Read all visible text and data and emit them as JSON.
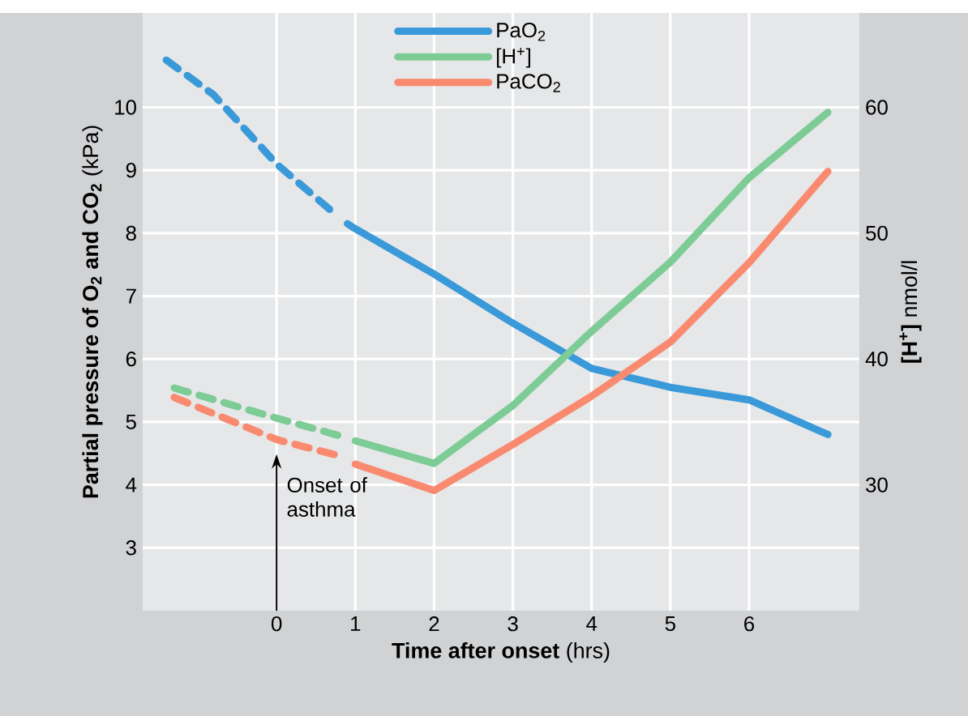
{
  "chart_data": {
    "type": "line",
    "xlabel": "**Time after onset** (hrs)",
    "ylabel": "**Partial pressure of O$_{2}$ and CO$_{2}$** (kPa)",
    "y2label": "**[H$^{+}$]** nmol/l",
    "xlim": [
      -1.7,
      7.4
    ],
    "xticks": [
      0,
      1,
      2,
      3,
      4,
      5,
      6
    ],
    "ylim": [
      2,
      11.5
    ],
    "yticks": [
      3,
      4,
      5,
      6,
      7,
      8,
      9,
      10
    ],
    "y2lim": [
      20,
      67.5
    ],
    "y2ticks": [
      30,
      40,
      50,
      60
    ],
    "grid": true,
    "legend": "top",
    "marker": "none",
    "series": [
      {
        "color": "#3a9ad9",
        "line_style": "dashed",
        "x": [
          -1.4,
          -0.8,
          0,
          0.7
        ],
        "values": [
          10.75,
          10.2,
          9.1,
          8.35
        ]
      },
      {
        "name": "PaO$_{2}$",
        "color": "#3a9ad9",
        "line_style": "solid",
        "x": [
          0.9,
          1,
          2,
          3,
          4,
          5,
          6,
          7
        ],
        "values": [
          8.15,
          8.07,
          7.35,
          6.57,
          5.85,
          5.55,
          5.35,
          4.8
        ]
      },
      {
        "color": "#7dcc96",
        "line_style": "dashed",
        "axis": "y2",
        "x": [
          -1.3,
          0,
          0.8
        ],
        "values": [
          37.7,
          35.3,
          33.9
        ]
      },
      {
        "name": "[H$^{+}$]",
        "color": "#7dcc96",
        "line_style": "solid",
        "axis": "y2",
        "x": [
          1,
          2,
          3,
          4,
          5,
          6,
          7
        ],
        "values": [
          33.5,
          31.7,
          36.3,
          42.2,
          47.7,
          54.4,
          59.6
        ]
      },
      {
        "color": "#f98a6f",
        "line_style": "dashed",
        "x": [
          -1.3,
          0,
          0.8
        ],
        "values": [
          5.39,
          4.72,
          4.46
        ]
      },
      {
        "name": "PaCO$_{2}$",
        "color": "#f98a6f",
        "line_style": "solid",
        "x": [
          1,
          2,
          3,
          4,
          5,
          6,
          7
        ],
        "values": [
          4.33,
          3.91,
          4.64,
          5.41,
          6.27,
          7.53,
          8.98
        ]
      }
    ],
    "annotations": [
      {
        "text": "Onset of asthma",
        "x": 0,
        "y": 4.72
      }
    ]
  }
}
